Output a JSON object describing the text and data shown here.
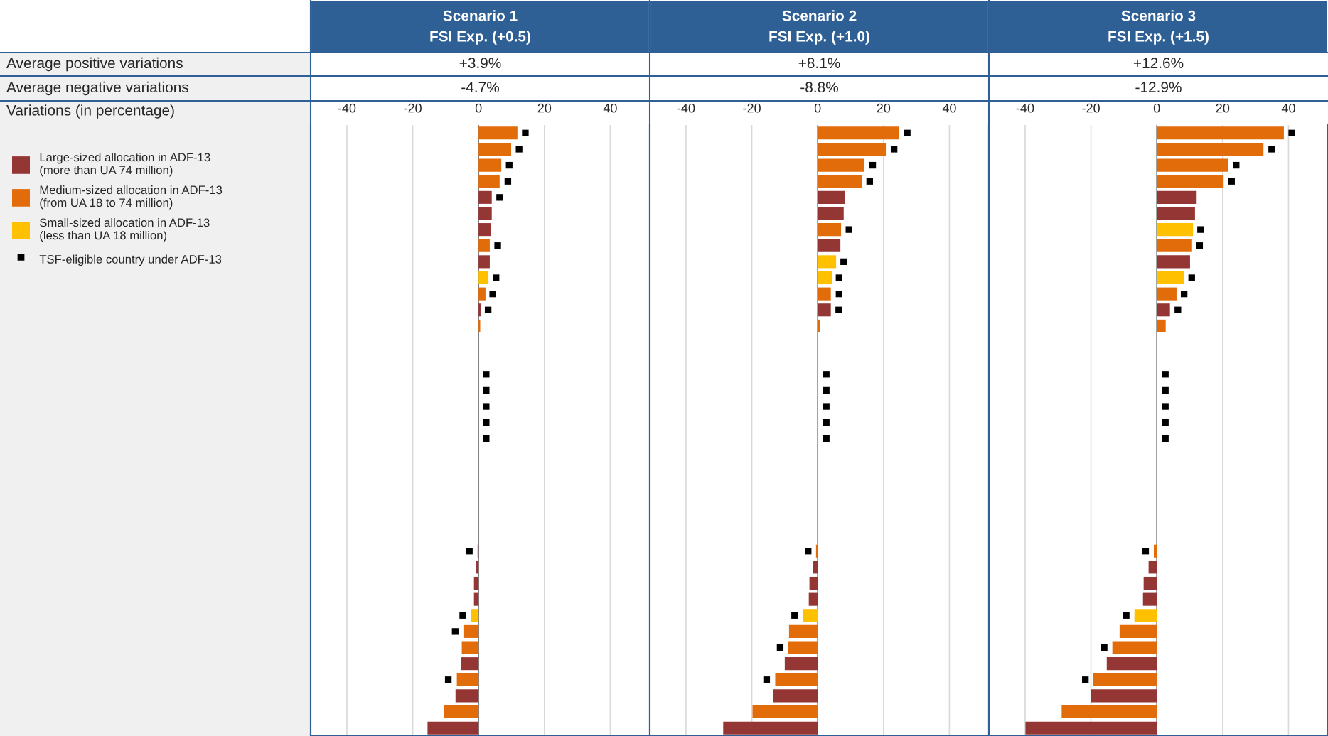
{
  "chart_data": [
    {
      "type": "bar",
      "orientation": "horizontal",
      "title": "Scenario 1",
      "subtitle": "FSI Exp. (+0.5)",
      "categories": [
        null,
        null,
        null,
        null,
        null,
        null,
        null,
        null,
        null,
        null,
        null,
        null,
        null,
        null,
        null,
        null,
        null,
        null,
        null,
        null,
        null,
        null,
        null,
        null,
        null,
        null,
        null,
        null,
        null,
        null,
        null,
        null,
        null,
        null,
        null,
        null,
        null,
        null
      ],
      "series": [
        {
          "name": "Large-sized allocation in ADF-13\n(more than UA 74 million)",
          "color": "#943634",
          "values": [
            null,
            null,
            null,
            null,
            4.0,
            4.0,
            3.8,
            null,
            3.4,
            null,
            null,
            0.6,
            null,
            null,
            null,
            null,
            null,
            null,
            null,
            null,
            null,
            null,
            null,
            null,
            null,
            null,
            -0.3,
            -0.7,
            -1.4,
            -1.4,
            null,
            null,
            null,
            -5.3,
            null,
            -7.0,
            null,
            -15.5
          ]
        },
        {
          "name": "Medium-sized allocation in ADF-13\n(from UA 18 to 74 million)",
          "color": "#e36c0a",
          "values": [
            11.8,
            9.9,
            6.9,
            6.4,
            null,
            null,
            null,
            3.4,
            null,
            null,
            2.1,
            null,
            0.5,
            null,
            null,
            null,
            null,
            null,
            null,
            null,
            null,
            null,
            null,
            null,
            null,
            null,
            null,
            null,
            null,
            null,
            null,
            -4.6,
            -5.1,
            null,
            -6.6,
            null,
            -10.5,
            null
          ]
        },
        {
          "name": "Small-sized allocation in ADF-13\n(less than UA 18 million)",
          "color": "#ffc000",
          "values": [
            null,
            null,
            null,
            null,
            null,
            null,
            null,
            null,
            null,
            3.0,
            null,
            null,
            null,
            null,
            null,
            null,
            null,
            null,
            null,
            null,
            null,
            null,
            null,
            null,
            null,
            null,
            null,
            null,
            null,
            null,
            -2.2,
            null,
            null,
            null,
            null,
            null,
            null,
            null
          ]
        },
        {
          "name": "TSF-eligible country under ADF-13",
          "type": "scatter",
          "marker": "square",
          "color": "#000000",
          "values": [
            14.2,
            12.3,
            9.3,
            8.9,
            6.4,
            null,
            null,
            5.8,
            null,
            5.3,
            4.3,
            2.9,
            null,
            null,
            null,
            2.3,
            2.3,
            2.3,
            2.3,
            2.3,
            null,
            null,
            null,
            null,
            null,
            null,
            -2.8,
            null,
            null,
            null,
            -4.8,
            -7.1,
            null,
            null,
            -9.2,
            null,
            null,
            null
          ]
        }
      ],
      "xlim": [
        -51,
        52
      ],
      "xticks": [
        -40,
        -20,
        0,
        20,
        40
      ],
      "grid": "x",
      "legend": "left",
      "ref_lines": [
        {
          "axis": "x",
          "value": 0,
          "color": "#808080"
        }
      ],
      "annotations": [
        "+3.9%",
        "-4.7%",
        "Average positive variations",
        "Average negative variations",
        "Variations (in percentage)"
      ]
    },
    {
      "type": "bar",
      "orientation": "horizontal",
      "title": "Scenario 2",
      "subtitle": "FSI Exp. (+1.0)",
      "categories": [
        null,
        null,
        null,
        null,
        null,
        null,
        null,
        null,
        null,
        null,
        null,
        null,
        null,
        null,
        null,
        null,
        null,
        null,
        null,
        null,
        null,
        null,
        null,
        null,
        null,
        null,
        null,
        null,
        null,
        null,
        null,
        null,
        null,
        null,
        null,
        null,
        null,
        null
      ],
      "series": [
        {
          "color": "#943634",
          "values": [
            null,
            null,
            null,
            null,
            8.2,
            7.9,
            null,
            6.9,
            null,
            null,
            null,
            4.0,
            null,
            null,
            null,
            null,
            null,
            null,
            null,
            null,
            null,
            null,
            null,
            null,
            null,
            null,
            null,
            -1.4,
            -2.5,
            -2.7,
            null,
            null,
            null,
            -10.0,
            null,
            -13.5,
            null,
            -28.7
          ]
        },
        {
          "color": "#e36c0a",
          "values": [
            24.8,
            20.7,
            14.2,
            13.4,
            null,
            null,
            7.1,
            null,
            null,
            null,
            4.0,
            null,
            0.8,
            null,
            null,
            null,
            null,
            null,
            null,
            null,
            null,
            null,
            null,
            null,
            null,
            null,
            -0.5,
            null,
            null,
            null,
            null,
            -8.7,
            -9.0,
            null,
            -12.9,
            null,
            -19.8,
            null
          ]
        },
        {
          "color": "#ffc000",
          "values": [
            null,
            null,
            null,
            null,
            null,
            null,
            null,
            null,
            5.6,
            4.3,
            null,
            null,
            null,
            null,
            null,
            null,
            null,
            null,
            null,
            null,
            null,
            null,
            null,
            null,
            null,
            null,
            null,
            null,
            null,
            null,
            -4.4,
            null,
            null,
            null,
            null,
            null,
            null,
            null
          ]
        },
        {
          "type": "scatter",
          "marker": "square",
          "color": "#000000",
          "values": [
            27.2,
            23.2,
            16.7,
            15.8,
            null,
            null,
            9.5,
            null,
            7.9,
            6.5,
            6.5,
            6.4,
            null,
            null,
            null,
            2.6,
            2.6,
            2.6,
            2.6,
            2.6,
            null,
            null,
            null,
            null,
            null,
            null,
            -2.9,
            null,
            null,
            null,
            -7.0,
            null,
            -11.4,
            null,
            -15.5,
            null,
            null,
            null
          ]
        }
      ],
      "xlim": [
        -51,
        52
      ],
      "xticks": [
        -40,
        -20,
        0,
        20,
        40
      ],
      "grid": "x",
      "ref_lines": [
        {
          "axis": "x",
          "value": 0,
          "color": "#808080"
        }
      ],
      "annotations": [
        "+8.1%",
        "-8.8%"
      ]
    },
    {
      "type": "bar",
      "orientation": "horizontal",
      "title": "Scenario 3",
      "subtitle": "FSI Exp. (+1.5)",
      "categories": [
        null,
        null,
        null,
        null,
        null,
        null,
        null,
        null,
        null,
        null,
        null,
        null,
        null,
        null,
        null,
        null,
        null,
        null,
        null,
        null,
        null,
        null,
        null,
        null,
        null,
        null,
        null,
        null,
        null,
        null,
        null,
        null,
        null,
        null,
        null,
        null,
        null,
        null
      ],
      "series": [
        {
          "color": "#943634",
          "values": [
            null,
            null,
            null,
            null,
            12.1,
            11.6,
            null,
            null,
            10.1,
            null,
            null,
            4.0,
            null,
            null,
            null,
            null,
            null,
            null,
            null,
            null,
            null,
            null,
            null,
            null,
            null,
            null,
            null,
            -2.5,
            -4.0,
            -4.2,
            null,
            null,
            null,
            -15.2,
            null,
            -20.0,
            null,
            -39.9
          ]
        },
        {
          "color": "#e36c0a",
          "values": [
            38.6,
            32.4,
            21.6,
            20.3,
            null,
            null,
            null,
            10.5,
            null,
            null,
            6.0,
            null,
            2.7,
            null,
            null,
            null,
            null,
            null,
            null,
            null,
            null,
            null,
            null,
            null,
            null,
            null,
            -0.9,
            null,
            null,
            null,
            null,
            -11.3,
            -13.5,
            null,
            -19.4,
            null,
            -28.9,
            null
          ]
        },
        {
          "color": "#ffc000",
          "values": [
            null,
            null,
            null,
            null,
            null,
            null,
            11.0,
            null,
            null,
            8.2,
            null,
            null,
            null,
            null,
            null,
            null,
            null,
            null,
            null,
            null,
            null,
            null,
            null,
            null,
            null,
            null,
            null,
            null,
            null,
            null,
            -6.8,
            null,
            null,
            null,
            null,
            null,
            null,
            null
          ]
        },
        {
          "type": "scatter",
          "marker": "square",
          "color": "#000000",
          "values": [
            41.0,
            34.9,
            24.1,
            22.7,
            null,
            null,
            13.3,
            13.0,
            null,
            10.6,
            8.3,
            6.4,
            null,
            null,
            null,
            2.6,
            2.6,
            2.6,
            2.6,
            2.6,
            null,
            null,
            null,
            null,
            null,
            null,
            -3.4,
            null,
            null,
            null,
            -9.3,
            null,
            -16.0,
            null,
            -21.7,
            null,
            null,
            null
          ]
        }
      ],
      "xlim": [
        -51,
        52
      ],
      "xticks": [
        -40,
        -20,
        0,
        20,
        40
      ],
      "grid": "x",
      "ref_lines": [
        {
          "axis": "x",
          "value": 0,
          "color": "#808080"
        }
      ],
      "annotations": [
        "+12.6%",
        "-12.9%"
      ]
    }
  ]
}
